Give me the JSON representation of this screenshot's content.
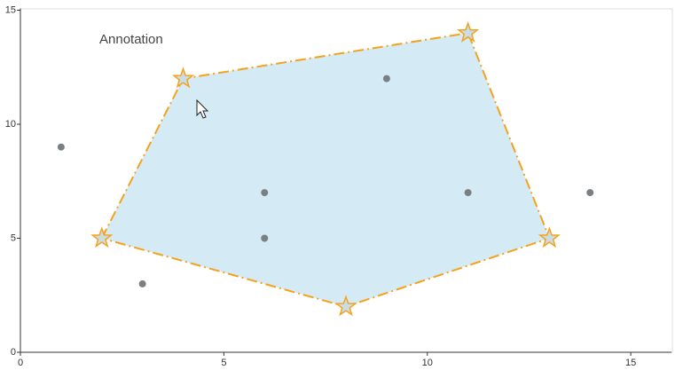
{
  "chart_data": {
    "type": "scatter",
    "annotation": "Annotation",
    "series": [
      {
        "color": "#7a7f84",
        "x": [
          1,
          3,
          6,
          6,
          9,
          11,
          14
        ],
        "values": [
          9,
          3,
          7,
          5,
          12,
          7,
          7
        ]
      }
    ],
    "polygon": {
      "fill": "#d4ebf6",
      "stroke": "#f5a21b",
      "x": [
        2,
        4,
        11,
        13,
        8
      ],
      "y": [
        5,
        12,
        14,
        5,
        2
      ]
    },
    "xlim": [
      0,
      16
    ],
    "xticks": [
      0,
      5,
      10,
      15
    ],
    "ylim": [
      0,
      15
    ],
    "yticks": [
      0,
      5,
      10,
      15
    ]
  }
}
